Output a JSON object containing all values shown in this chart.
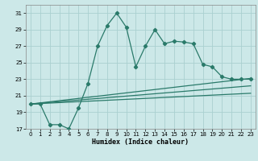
{
  "title": "",
  "xlabel": "Humidex (Indice chaleur)",
  "ylabel": "",
  "bg_color": "#cce8e8",
  "grid_color": "#aad0d0",
  "line_color": "#2a7a6a",
  "xlim": [
    -0.5,
    23.5
  ],
  "ylim": [
    17,
    32
  ],
  "yticks": [
    17,
    19,
    21,
    23,
    25,
    27,
    29,
    31
  ],
  "xticks": [
    0,
    1,
    2,
    3,
    4,
    5,
    6,
    7,
    8,
    9,
    10,
    11,
    12,
    13,
    14,
    15,
    16,
    17,
    18,
    19,
    20,
    21,
    22,
    23
  ],
  "line1_x": [
    0,
    1,
    2,
    3,
    4,
    5,
    6,
    7,
    8,
    9,
    10,
    11,
    12,
    13,
    14,
    15,
    16,
    17,
    18,
    19,
    20,
    21,
    22,
    23
  ],
  "line1_y": [
    20,
    20,
    17.5,
    17.5,
    17,
    19.5,
    22.5,
    27,
    29.5,
    31,
    29.3,
    24.5,
    27,
    29,
    27.3,
    27.6,
    27.5,
    27.3,
    24.8,
    24.5,
    23.3,
    23,
    23,
    23
  ],
  "line2_x": [
    0,
    23
  ],
  "line2_y": [
    20,
    23.1
  ],
  "line3_x": [
    0,
    23
  ],
  "line3_y": [
    20,
    22.2
  ],
  "line4_x": [
    0,
    23
  ],
  "line4_y": [
    20,
    21.3
  ],
  "marker_style": "D",
  "marker_size": 2.2,
  "line_width": 0.9,
  "tick_fontsize": 5.0,
  "xlabel_fontsize": 6.0
}
